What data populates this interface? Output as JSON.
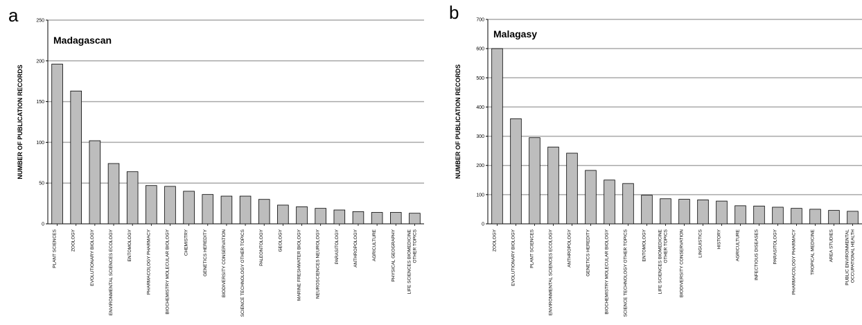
{
  "panels": [
    {
      "letter": "a",
      "title": "Madagascan"
    },
    {
      "letter": "b",
      "title": "Malagasy"
    }
  ],
  "chart_data": [
    {
      "type": "bar",
      "panel": "a",
      "title": "Madagascan",
      "ylabel": "NUMBER OF PUBLICATION  RECORDS",
      "xlabel": "",
      "ylim": [
        0,
        250
      ],
      "yticks": [
        0,
        50,
        100,
        150,
        200,
        250
      ],
      "grid": true,
      "categories": [
        "PLANT SCIENCES",
        "ZOOLOGY",
        "EVOLUTIONARY  BIOLOGY",
        "ENVIRONMENTAL  SCIENCES  ECOLOGY",
        "ENTOMOLOGY",
        "PHARMACOLOGY  PHARMACY",
        "BIOCHEMISTRY  MOLECULAR  BIOLOGY",
        "CHEMISTRY",
        "GENETICS  HEREDITY",
        "BIODIVERSITY  CONSERVATION",
        "SCIENCE  TECHNOLOGY  OTHER  TOPICS",
        "PALEONTOLOGY",
        "GEOLOGY",
        "MARINE FRESHWATER  BIOLOGY",
        "NEUROSCIENCES  NEUROLOGY",
        "PARASITOLOGY",
        "ANTHROPOLOGY",
        "AGRICULTURE",
        "PHYSICAL  GEOGRAPHY",
        "LIFE SCIENCES  BIOMEDICINE  OTHER TOPICS"
      ],
      "values": [
        196,
        163,
        102,
        74,
        64,
        47,
        46,
        40,
        36,
        34,
        34,
        30,
        23,
        21,
        19,
        17,
        15,
        14,
        14,
        13
      ]
    },
    {
      "type": "bar",
      "panel": "b",
      "title": "Malagasy",
      "ylabel": "NUMBER OF PUBLICATION  RECORDS",
      "xlabel": "",
      "ylim": [
        0,
        700
      ],
      "yticks": [
        0,
        100,
        200,
        300,
        400,
        500,
        600,
        700
      ],
      "grid": true,
      "categories": [
        "ZOOLOGY",
        "EVOLUTIONARY  BIOLOGY",
        "PLANT SCIENCES",
        "ENVIRONMENTAL  SCIENCES  ECOLOGY",
        "ANTHROPOLOGY",
        "GENETICS  HEREDITY",
        "BIOCHEMISTRY  MOLECULAR  BIOLOGY",
        "SCIENCE  TECHNOLOGY  OTHER  TOPICS",
        "ENTOMOLOGY",
        "LIFE SCIENCES  BIOMEDICINE  OTHER TOPICS",
        "BIODIVERSITY  CONSERVATION",
        "LINGUISTICS",
        "HISTORY",
        "AGRICULTURE",
        "INFECTIOUS  DISEASES",
        "PARASITOLOGY",
        "PHARMACOLOGY  PHARMACY",
        "TROPICAL  MEDICINE",
        "AREA STUDIES",
        "PUBLIC ENVIRONMENTAL OCCUPATIONAL  HEALTH"
      ],
      "values": [
        600,
        360,
        295,
        263,
        242,
        183,
        150,
        138,
        98,
        86,
        84,
        82,
        78,
        62,
        61,
        57,
        53,
        50,
        46,
        43
      ]
    }
  ]
}
